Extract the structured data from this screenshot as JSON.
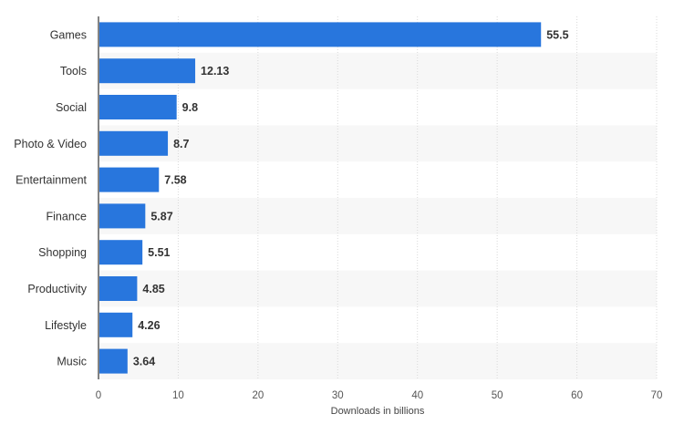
{
  "chart_data": {
    "type": "bar",
    "orientation": "horizontal",
    "categories": [
      "Games",
      "Tools",
      "Social",
      "Photo & Video",
      "Entertainment",
      "Finance",
      "Shopping",
      "Productivity",
      "Lifestyle",
      "Music"
    ],
    "values": [
      55.5,
      12.13,
      9.8,
      8.7,
      7.58,
      5.87,
      5.51,
      4.85,
      4.26,
      3.64
    ],
    "value_labels": [
      "55.5",
      "12.13",
      "9.8",
      "8.7",
      "7.58",
      "5.87",
      "5.51",
      "4.85",
      "4.26",
      "3.64"
    ],
    "xlabel": "Downloads in billions",
    "ylabel": "",
    "xlim": [
      0,
      70
    ],
    "ticks": [
      "0",
      "10",
      "20",
      "30",
      "40",
      "50",
      "60",
      "70"
    ],
    "grid": true,
    "legend": "none",
    "bar_color": "#2876dd",
    "band_color": "#f7f7f7"
  }
}
